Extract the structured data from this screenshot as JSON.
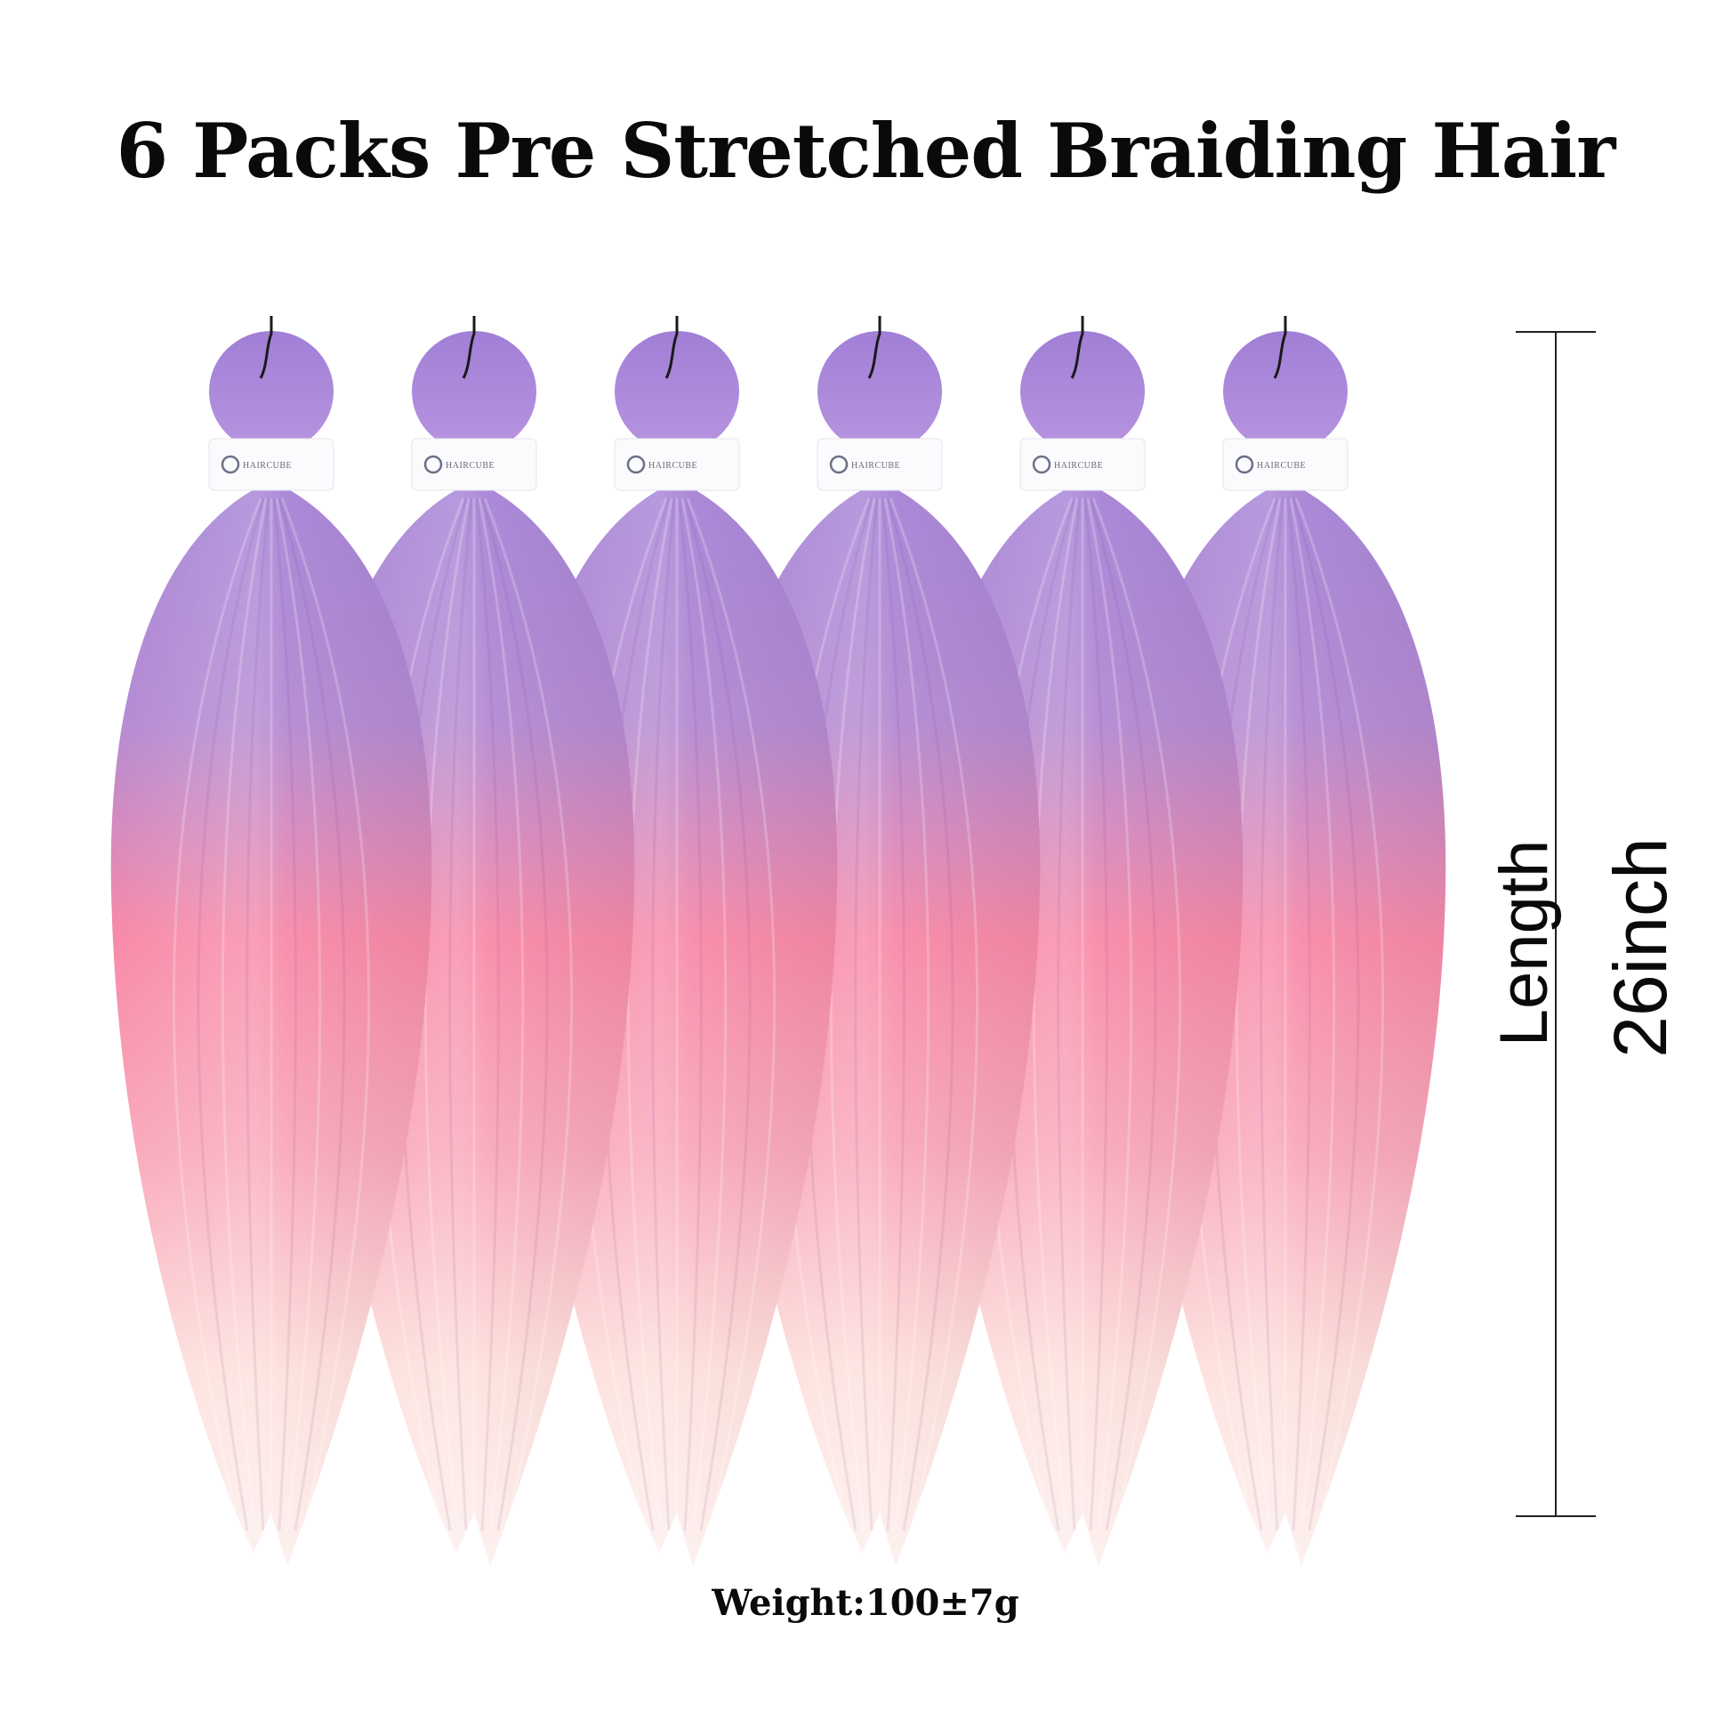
{
  "title": "6 Packs Pre Stretched Braiding Hair",
  "bundles": {
    "count": 6,
    "brand_label": "HAIRCUBE",
    "colors": {
      "top": "#a583d6",
      "middle": "#f88aa8",
      "bottom": "#fde0dc"
    }
  },
  "measure": {
    "label": "Length",
    "value": "26inch"
  },
  "weight": "Weight:100±7g"
}
